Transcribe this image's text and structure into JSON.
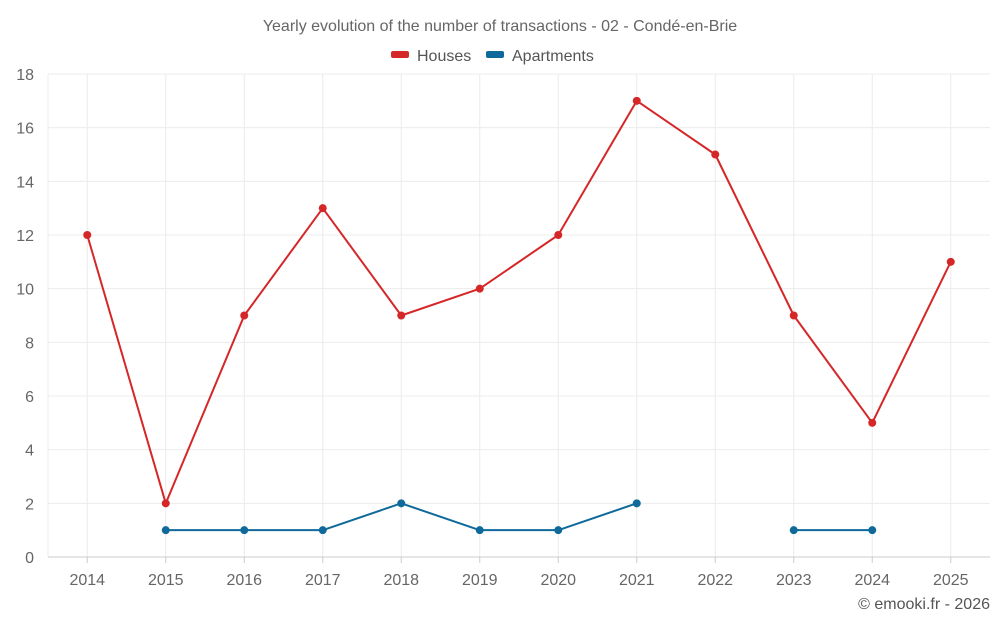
{
  "chart_data": {
    "type": "line",
    "title": "Yearly evolution of the number of transactions - 02 - Condé-en-Brie",
    "categories": [
      "2014",
      "2015",
      "2016",
      "2017",
      "2018",
      "2019",
      "2020",
      "2021",
      "2022",
      "2023",
      "2024",
      "2025"
    ],
    "series": [
      {
        "name": "Houses",
        "color": "#d62728",
        "values": [
          12,
          2,
          9,
          13,
          9,
          10,
          12,
          17,
          15,
          9,
          5,
          11
        ]
      },
      {
        "name": "Apartments",
        "color": "#0f6a9b",
        "values": [
          null,
          1,
          1,
          1,
          2,
          1,
          1,
          2,
          null,
          1,
          1,
          null
        ]
      }
    ],
    "ylim": [
      0,
      18
    ],
    "yticks": [
      0,
      2,
      4,
      6,
      8,
      10,
      12,
      14,
      16,
      18
    ],
    "xlabel": "",
    "ylabel": "",
    "grid": true,
    "legend": "top-center"
  },
  "credit": "© emooki.fr - 2026"
}
